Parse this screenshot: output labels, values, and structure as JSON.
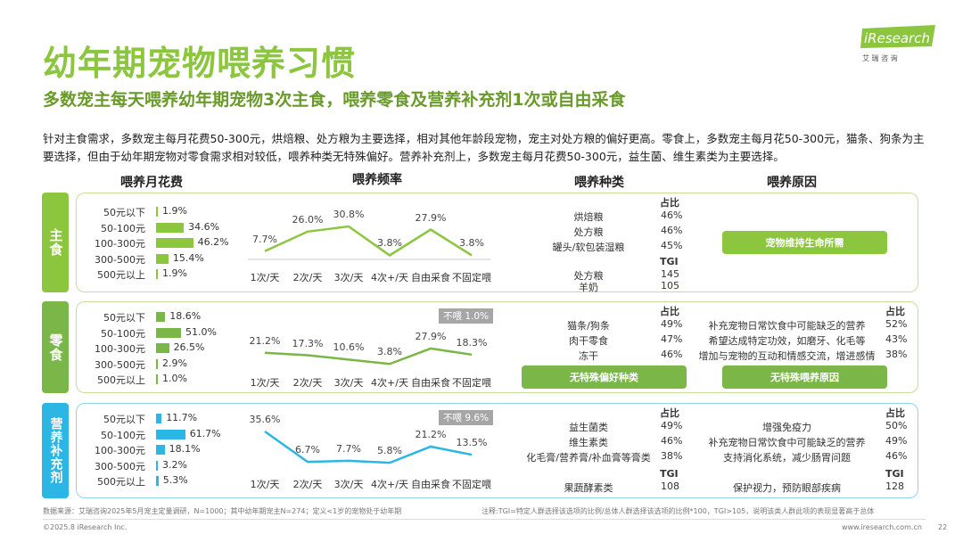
{
  "header": {
    "title": "幼年期宠物喂养习惯",
    "subtitle": "多数宠主每天喂养幼年期宠物3次主食，喂养零食及营养补充剂1次或自由采食",
    "description": "针对主食需求，多数宠主每月花费50-300元，烘焙粮、处方粮为主要选择，相对其他年龄段宠物，宠主对处方粮的偏好更高。零食上，多数宠主每月花50-300元，猫条、狗条为主要选择，但由于幼年期宠物对零食需求相对较低，喂养种类无特殊偏好。营养补充剂上，多数宠主每月花费50-300元，益生菌、维生素类为主要选择。"
  },
  "logo": {
    "brand": "iResearch",
    "tagline": "艾 瑞 咨 询"
  },
  "columns": {
    "spend": "喂养月花费",
    "frequency": "喂养频率",
    "types": "喂养种类",
    "reasons": "喂养原因"
  },
  "colors": {
    "staple": "#8cc63f",
    "snack": "#7ab648",
    "supplement": "#2bb6e3",
    "badge": "#a6a6a6"
  },
  "spend_categories": [
    "50元以下",
    "50-100元",
    "100-300元",
    "300-500元",
    "500元以上"
  ],
  "frequency_categories": [
    "1次/天",
    "2次/天",
    "3次/天",
    "4次+/天",
    "自由采食",
    "不固定喂"
  ],
  "rows": [
    {
      "tab": "主食",
      "spend": [
        1.9,
        34.6,
        46.2,
        15.4,
        1.9
      ],
      "spend_labels": [
        "1.9%",
        "34.6%",
        "46.2%",
        "15.4%",
        "1.9%"
      ],
      "frequency": [
        7.7,
        26.0,
        30.8,
        3.8,
        27.9,
        3.8
      ],
      "frequency_labels": [
        "7.7%",
        "26.0%",
        "30.8%",
        "3.8%",
        "27.9%",
        "3.8%"
      ],
      "no_feed": "",
      "types": {
        "share_header": "占比",
        "share": [
          {
            "name": "烘焙粮",
            "value": "46%"
          },
          {
            "name": "处方粮",
            "value": "46%"
          },
          {
            "name": "罐头/软包装湿粮",
            "value": "45%"
          }
        ],
        "tgi_header": "TGI",
        "tgi": [
          {
            "name": "处方粮",
            "value": "145"
          },
          {
            "name": "羊奶",
            "value": "105"
          }
        ],
        "button": ""
      },
      "reasons": {
        "button": "宠物维持生命所需",
        "share_header": "",
        "share": [],
        "tgi_header": "",
        "tgi": []
      }
    },
    {
      "tab": "零食",
      "spend": [
        18.6,
        51.0,
        26.5,
        2.9,
        1.0
      ],
      "spend_labels": [
        "18.6%",
        "51.0%",
        "26.5%",
        "2.9%",
        "1.0%"
      ],
      "frequency": [
        21.2,
        17.3,
        10.6,
        3.8,
        27.9,
        18.3
      ],
      "frequency_labels": [
        "21.2%",
        "17.3%",
        "10.6%",
        "3.8%",
        "27.9%",
        "18.3%"
      ],
      "no_feed": "不喂 1.0%",
      "types": {
        "share_header": "占比",
        "share": [
          {
            "name": "猫条/狗条",
            "value": "49%"
          },
          {
            "name": "肉干零食",
            "value": "47%"
          },
          {
            "name": "冻干",
            "value": "46%"
          }
        ],
        "tgi_header": "",
        "tgi": [],
        "button": "无特殊偏好种类"
      },
      "reasons": {
        "button": "无特殊喂养原因",
        "share_header": "占比",
        "share": [
          {
            "name": "补充宠物日常饮食中可能缺乏的营养",
            "value": "52%"
          },
          {
            "name": "希望达成特定功效，如磨牙、化毛等",
            "value": "43%"
          },
          {
            "name": "增加与宠物的互动和情感交流，增进感情",
            "value": "38%"
          }
        ],
        "tgi_header": "",
        "tgi": []
      }
    },
    {
      "tab": "营养补充剂",
      "spend": [
        11.7,
        61.7,
        18.1,
        3.2,
        5.3
      ],
      "spend_labels": [
        "11.7%",
        "61.7%",
        "18.1%",
        "3.2%",
        "5.3%"
      ],
      "frequency": [
        35.6,
        6.7,
        7.7,
        5.8,
        21.2,
        13.5
      ],
      "frequency_labels": [
        "35.6%",
        "6.7%",
        "7.7%",
        "5.8%",
        "21.2%",
        "13.5%"
      ],
      "no_feed": "不喂  9.6%",
      "types": {
        "share_header": "占比",
        "share": [
          {
            "name": "益生菌类",
            "value": "49%"
          },
          {
            "name": "维生素类",
            "value": "46%"
          },
          {
            "name": "化毛膏/营养膏/补血膏等膏类",
            "value": "38%"
          }
        ],
        "tgi_header": "TGI",
        "tgi": [
          {
            "name": "果蔬酵素类",
            "value": "108"
          }
        ],
        "button": ""
      },
      "reasons": {
        "button": "",
        "share_header": "占比",
        "share": [
          {
            "name": "增强免疫力",
            "value": "50%"
          },
          {
            "name": "补充宠物日常饮食中可能缺乏的营养",
            "value": "49%"
          },
          {
            "name": "支持消化系统，减少肠胃问题",
            "value": "46%"
          }
        ],
        "tgi_header": "TGI",
        "tgi": [
          {
            "name": "保护视力，预防眼部疾病",
            "value": "128"
          }
        ]
      }
    }
  ],
  "footer": {
    "source": "数据来源：艾瑞咨询2025年5月宠主定量调研，N=1000；其中幼年期宠主N=274；定义<1岁的宠物处于幼年期",
    "note": "注释:TGI=特定人群选择该选项的比例/总体人群选择该选项的比例*100，TGI>105，说明该类人群此项的表现显著高于总体",
    "copyright": "©2025.8 iResearch Inc.",
    "website": "www.iresearch.com.cn",
    "page": "22"
  }
}
